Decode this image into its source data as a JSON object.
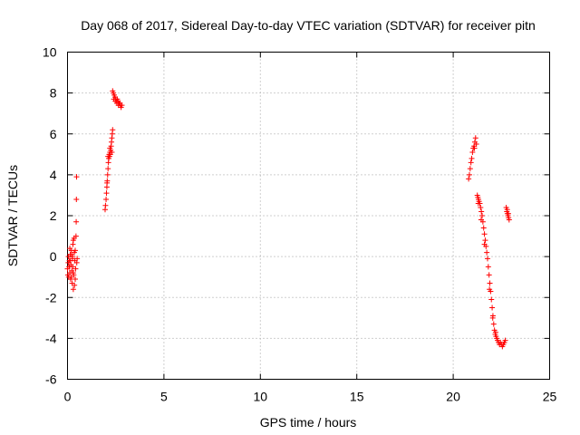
{
  "chart_data": {
    "type": "scatter",
    "title": "Day 068 of 2017, Sidereal Day-to-day VTEC variation (SDTVAR) for receiver pitn",
    "xlabel": "GPS time / hours",
    "ylabel": "SDTVAR / TECUs",
    "xlim": [
      0,
      25
    ],
    "ylim": [
      -6,
      10
    ],
    "xticks": [
      0,
      5,
      10,
      15,
      20,
      25
    ],
    "yticks": [
      -6,
      -4,
      -2,
      0,
      2,
      4,
      6,
      8,
      10
    ],
    "xtick_labels": [
      "0",
      "5",
      "10",
      "15",
      "20",
      "25"
    ],
    "ytick_labels": [
      "-6",
      "-4",
      "-2",
      "0",
      "2",
      "4",
      "6",
      "8",
      "10"
    ],
    "grid": true,
    "marker": "+",
    "series": [
      {
        "name": "SDTVAR",
        "color": "#ff0000",
        "points": [
          [
            0.0,
            -0.6
          ],
          [
            0.02,
            -0.9
          ],
          [
            0.04,
            -0.3
          ],
          [
            0.06,
            -1.0
          ],
          [
            0.08,
            -0.5
          ],
          [
            0.1,
            -0.2
          ],
          [
            0.12,
            -0.8
          ],
          [
            0.14,
            0.1
          ],
          [
            0.16,
            -1.1
          ],
          [
            0.18,
            -0.4
          ],
          [
            0.2,
            0.3
          ],
          [
            0.22,
            -0.7
          ],
          [
            0.24,
            -1.3
          ],
          [
            0.26,
            -0.1
          ],
          [
            0.28,
            0.6
          ],
          [
            0.3,
            -1.6
          ],
          [
            0.32,
            -0.9
          ],
          [
            0.34,
            0.9
          ],
          [
            0.36,
            -1.4
          ],
          [
            0.38,
            -0.2
          ],
          [
            0.4,
            0.3
          ],
          [
            0.42,
            -0.6
          ],
          [
            0.44,
            1.0
          ],
          [
            0.45,
            1.7
          ],
          [
            0.46,
            2.8
          ],
          [
            0.47,
            3.9
          ],
          [
            0.48,
            -0.3
          ],
          [
            0.5,
            -0.1
          ],
          [
            0.05,
            0.0
          ],
          [
            0.15,
            -0.2
          ],
          [
            0.25,
            0.0
          ],
          [
            0.35,
            0.2
          ],
          [
            0.1,
            -0.5
          ],
          [
            0.3,
            -0.8
          ],
          [
            0.2,
            -1.0
          ],
          [
            0.4,
            -1.1
          ],
          [
            0.3,
            0.8
          ],
          [
            0.22,
            0.1
          ],
          [
            0.12,
            0.4
          ],
          [
            0.27,
            -0.5
          ],
          [
            1.95,
            2.3
          ],
          [
            1.97,
            2.5
          ],
          [
            2.0,
            2.8
          ],
          [
            2.02,
            3.1
          ],
          [
            2.04,
            3.4
          ],
          [
            2.06,
            3.7
          ],
          [
            2.08,
            4.0
          ],
          [
            2.1,
            4.3
          ],
          [
            2.12,
            4.6
          ],
          [
            2.14,
            4.8
          ],
          [
            2.16,
            5.0
          ],
          [
            2.18,
            4.9
          ],
          [
            2.2,
            5.1
          ],
          [
            2.22,
            5.0
          ],
          [
            2.24,
            5.2
          ],
          [
            2.26,
            5.4
          ],
          [
            2.28,
            5.6
          ],
          [
            2.3,
            5.8
          ],
          [
            2.32,
            6.0
          ],
          [
            2.34,
            6.2
          ],
          [
            2.05,
            3.6
          ],
          [
            2.1,
            4.9
          ],
          [
            2.2,
            5.3
          ],
          [
            2.3,
            5.1
          ],
          [
            2.34,
            8.1
          ],
          [
            2.38,
            8.0
          ],
          [
            2.42,
            7.9
          ],
          [
            2.46,
            7.8
          ],
          [
            2.5,
            7.7
          ],
          [
            2.54,
            7.6
          ],
          [
            2.58,
            7.7
          ],
          [
            2.62,
            7.6
          ],
          [
            2.66,
            7.5
          ],
          [
            2.7,
            7.5
          ],
          [
            2.74,
            7.4
          ],
          [
            2.78,
            7.3
          ],
          [
            2.82,
            7.4
          ],
          [
            2.4,
            7.7
          ],
          [
            2.48,
            7.6
          ],
          [
            2.56,
            7.5
          ],
          [
            2.64,
            7.4
          ],
          [
            2.72,
            7.5
          ],
          [
            20.8,
            3.8
          ],
          [
            20.84,
            4.0
          ],
          [
            20.88,
            4.3
          ],
          [
            20.92,
            4.6
          ],
          [
            20.96,
            4.8
          ],
          [
            21.0,
            5.1
          ],
          [
            21.04,
            5.3
          ],
          [
            21.08,
            5.4
          ],
          [
            21.12,
            5.6
          ],
          [
            21.16,
            5.8
          ],
          [
            21.2,
            5.5
          ],
          [
            21.1,
            5.3
          ],
          [
            21.25,
            3.0
          ],
          [
            21.28,
            2.9
          ],
          [
            21.31,
            2.8
          ],
          [
            21.34,
            2.7
          ],
          [
            21.38,
            2.6
          ],
          [
            21.42,
            2.4
          ],
          [
            21.46,
            2.2
          ],
          [
            21.5,
            2.0
          ],
          [
            21.54,
            1.7
          ],
          [
            21.58,
            1.4
          ],
          [
            21.62,
            1.1
          ],
          [
            21.66,
            0.8
          ],
          [
            21.7,
            0.5
          ],
          [
            21.74,
            0.2
          ],
          [
            21.78,
            -0.1
          ],
          [
            21.82,
            -0.5
          ],
          [
            21.86,
            -0.9
          ],
          [
            21.9,
            -1.3
          ],
          [
            21.94,
            -1.7
          ],
          [
            21.98,
            -2.1
          ],
          [
            22.02,
            -2.5
          ],
          [
            22.06,
            -2.9
          ],
          [
            22.1,
            -3.3
          ],
          [
            22.14,
            -3.6
          ],
          [
            22.18,
            -3.8
          ],
          [
            22.22,
            -3.9
          ],
          [
            22.26,
            -4.0
          ],
          [
            22.3,
            -4.1
          ],
          [
            22.35,
            -4.2
          ],
          [
            22.4,
            -4.3
          ],
          [
            22.45,
            -4.2
          ],
          [
            22.5,
            -4.3
          ],
          [
            22.55,
            -4.4
          ],
          [
            22.6,
            -4.3
          ],
          [
            22.65,
            -4.2
          ],
          [
            22.7,
            -4.1
          ],
          [
            21.3,
            2.6
          ],
          [
            21.45,
            1.8
          ],
          [
            21.62,
            0.6
          ],
          [
            21.88,
            -1.6
          ],
          [
            22.05,
            -3.0
          ],
          [
            22.2,
            -3.7
          ],
          [
            22.75,
            2.4
          ],
          [
            22.78,
            2.2
          ],
          [
            22.81,
            2.1
          ],
          [
            22.84,
            2.0
          ],
          [
            22.87,
            1.9
          ],
          [
            22.9,
            1.8
          ],
          [
            22.8,
            2.3
          ],
          [
            22.86,
            2.1
          ]
        ]
      }
    ]
  }
}
